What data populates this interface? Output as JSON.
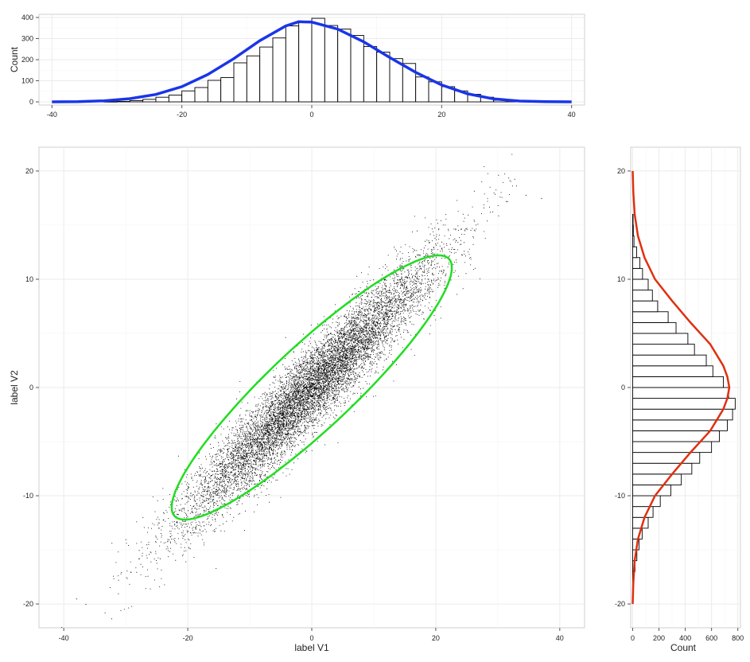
{
  "chart_data": [
    {
      "id": "top_hist",
      "type": "bar",
      "xlabel": "",
      "ylabel": "Count",
      "xlim": [
        -42,
        42
      ],
      "ylim": [
        -15,
        415
      ],
      "x_ticks": [
        -40,
        -20,
        0,
        20,
        40
      ],
      "y_ticks": [
        0,
        100,
        200,
        300,
        400
      ],
      "x_tick_labels": [
        "-40",
        "-20",
        "0",
        "20",
        "40"
      ],
      "y_tick_labels": [
        "0",
        "100",
        "200",
        "300",
        "400"
      ],
      "bins": {
        "start": -32,
        "width": 2,
        "counts": [
          1,
          2,
          6,
          12,
          22,
          32,
          52,
          68,
          102,
          115,
          185,
          218,
          260,
          303,
          360,
          378,
          396,
          362,
          345,
          315,
          262,
          236,
          205,
          182,
          118,
          95,
          72,
          52,
          36,
          22,
          8,
          4
        ]
      },
      "density_curve": {
        "color": "#1a35e8",
        "x": [
          -40,
          -36,
          -32,
          -28,
          -24,
          -20,
          -16,
          -12,
          -8,
          -4,
          -2,
          0,
          4,
          8,
          12,
          16,
          20,
          24,
          28,
          32,
          36,
          40
        ],
        "y": [
          0,
          1,
          5,
          15,
          35,
          72,
          130,
          205,
          290,
          360,
          380,
          378,
          345,
          285,
          210,
          140,
          80,
          38,
          14,
          4,
          1,
          0
        ]
      },
      "grid": true
    },
    {
      "id": "scatter",
      "type": "scatter",
      "xlabel": "label V1",
      "ylabel": "label V2",
      "xlim": [
        -44,
        44
      ],
      "ylim": [
        -22.2,
        22.2
      ],
      "x_ticks": [
        -40,
        -20,
        0,
        20,
        40
      ],
      "y_ticks": [
        -20,
        -10,
        0,
        10,
        20
      ],
      "x_tick_labels": [
        "-40",
        "-20",
        "0",
        "20",
        "40"
      ],
      "y_tick_labels": [
        "-20",
        "-10",
        "0",
        "10",
        "20"
      ],
      "points_description": {
        "n_points": 10000,
        "mean": [
          0,
          0
        ],
        "sd": [
          10,
          6
        ],
        "correlation": 0.95,
        "point_color": "#000000",
        "extreme_points": [
          [
            -38,
            -19.5
          ],
          [
            -36.5,
            -20
          ],
          [
            37,
            17.5
          ],
          [
            34.5,
            17.8
          ],
          [
            31.5,
            17.2
          ]
        ]
      },
      "ellipse": {
        "color": "#22dd22",
        "level": 0.95,
        "endpoints": [
          [
            -22.5,
            -11.5
          ],
          [
            22.5,
            11.5
          ]
        ]
      },
      "grid": true
    },
    {
      "id": "right_hist",
      "type": "bar",
      "orientation": "horizontal",
      "xlabel": "Count",
      "ylabel": "",
      "xlim": [
        -15,
        820
      ],
      "ylim": [
        -22.2,
        22.2
      ],
      "x_ticks": [
        0,
        200,
        400,
        600,
        800
      ],
      "y_ticks": [
        -20,
        -10,
        0,
        10,
        20
      ],
      "x_tick_labels": [
        "0",
        "200",
        "400",
        "600",
        "800"
      ],
      "y_tick_labels": [
        "-20",
        "-10",
        "0",
        "10",
        "20"
      ],
      "bins": {
        "start": -19,
        "width": 1,
        "counts": [
          2,
          8,
          18,
          32,
          48,
          72,
          118,
          155,
          210,
          290,
          370,
          450,
          510,
          600,
          660,
          720,
          760,
          780,
          730,
          690,
          610,
          560,
          470,
          420,
          330,
          270,
          190,
          150,
          118,
          75,
          55,
          30,
          10,
          5,
          2
        ]
      },
      "density_curve": {
        "color": "#e03010",
        "y": [
          -20,
          -18,
          -16,
          -14,
          -12,
          -10,
          -8,
          -6,
          -4,
          -2,
          -1,
          0,
          1,
          2,
          4,
          6,
          8,
          10,
          12,
          14,
          16,
          18,
          20
        ],
        "x": [
          0,
          5,
          15,
          40,
          90,
          170,
          300,
          440,
          590,
          690,
          720,
          735,
          720,
          690,
          590,
          440,
          300,
          170,
          90,
          40,
          15,
          5,
          0
        ]
      },
      "grid": true
    }
  ]
}
